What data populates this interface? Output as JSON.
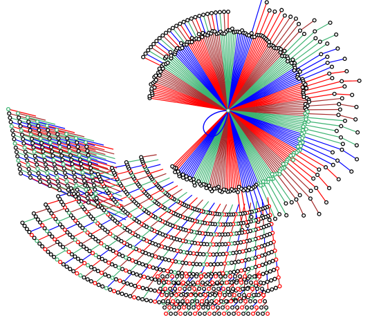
{
  "diagram": {
    "type": "radial-tree",
    "background": "#ffffff",
    "edge_colors": [
      "#ff0000",
      "#a52a2a",
      "#3cb371",
      "#0000ff"
    ],
    "node_stroke": "#000000",
    "node_fill": "#ffffff",
    "accent_loop_color": "#0000ff",
    "levels": [
      {
        "ring": "inner",
        "branches": 220
      },
      {
        "ring": "outer",
        "branches": 260
      }
    ]
  }
}
